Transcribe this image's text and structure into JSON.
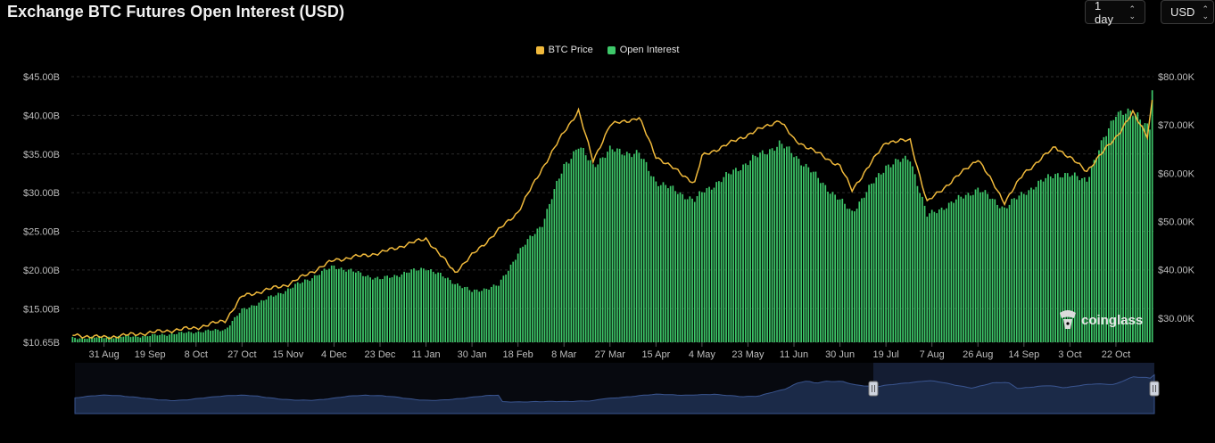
{
  "header": {
    "title": "Exchange BTC Futures Open Interest (USD)",
    "interval_label": "1 day",
    "currency_label": "USD"
  },
  "watermark": {
    "text": "coinglass"
  },
  "colors": {
    "price": "#f0b93b",
    "oi": "#3ec86a",
    "grid": "#2a2a2a",
    "text": "#bdbdbd",
    "navigator": "#1b2a48"
  },
  "chart_data": {
    "type": "bar",
    "series": [
      {
        "name": "BTC Price",
        "type": "line",
        "axis": "right"
      },
      {
        "name": "Open Interest",
        "type": "bar",
        "axis": "left"
      }
    ],
    "x_tick_labels": [
      "31 Aug",
      "19 Sep",
      "8 Oct",
      "27 Oct",
      "15 Nov",
      "4 Dec",
      "23 Dec",
      "11 Jan",
      "30 Jan",
      "18 Feb",
      "8 Mar",
      "27 Mar",
      "15 Apr",
      "4 May",
      "23 May",
      "11 Jun",
      "30 Jun",
      "19 Jul",
      "7 Aug",
      "26 Aug",
      "14 Sep",
      "3 Oct",
      "22 Oct"
    ],
    "y_left_tick_labels": [
      "$45.00B",
      "$40.00B",
      "$35.00B",
      "$30.00B",
      "$25.00B",
      "$20.00B",
      "$15.00B",
      "$10.65B"
    ],
    "y_right_tick_labels": [
      "$80.00K",
      "$70.00K",
      "$60.00K",
      "$50.00K",
      "$40.00K",
      "$30.00K"
    ],
    "y_left_range": [
      10.65,
      45
    ],
    "y_right_range": [
      25,
      80
    ],
    "grid": true,
    "legend_position": "top-center",
    "oi_keypoints_billion_usd": [
      [
        "2023-08-18",
        11.2
      ],
      [
        "2023-08-31",
        11.3
      ],
      [
        "2023-09-19",
        11.5
      ],
      [
        "2023-10-08",
        12.0
      ],
      [
        "2023-10-20",
        12.3
      ],
      [
        "2023-10-27",
        14.8
      ],
      [
        "2023-11-15",
        17.5
      ],
      [
        "2023-12-04",
        20.5
      ],
      [
        "2023-12-23",
        18.8
      ],
      [
        "2024-01-11",
        20.3
      ],
      [
        "2024-01-30",
        17.2
      ],
      [
        "2024-02-10",
        18.0
      ],
      [
        "2024-02-18",
        22.2
      ],
      [
        "2024-02-28",
        26.0
      ],
      [
        "2024-03-08",
        33.5
      ],
      [
        "2024-03-14",
        36.0
      ],
      [
        "2024-03-20",
        33.5
      ],
      [
        "2024-03-27",
        35.5
      ],
      [
        "2024-04-08",
        35.0
      ],
      [
        "2024-04-15",
        31.5
      ],
      [
        "2024-05-01",
        29.0
      ],
      [
        "2024-05-04",
        30.0
      ],
      [
        "2024-05-23",
        34.0
      ],
      [
        "2024-06-05",
        36.3
      ],
      [
        "2024-06-11",
        35.0
      ],
      [
        "2024-06-30",
        29.0
      ],
      [
        "2024-07-05",
        27.5
      ],
      [
        "2024-07-19",
        33.5
      ],
      [
        "2024-07-29",
        34.5
      ],
      [
        "2024-08-05",
        27.0
      ],
      [
        "2024-08-26",
        30.5
      ],
      [
        "2024-09-06",
        28.0
      ],
      [
        "2024-09-14",
        30.0
      ],
      [
        "2024-09-27",
        32.5
      ],
      [
        "2024-10-10",
        31.8
      ],
      [
        "2024-10-22",
        40.5
      ],
      [
        "2024-10-31",
        40.0
      ],
      [
        "2024-11-05",
        38.5
      ],
      [
        "2024-11-06",
        43.5
      ]
    ],
    "btc_price_keypoints_usd": [
      [
        "2023-08-18",
        26500
      ],
      [
        "2023-08-31",
        26000
      ],
      [
        "2023-09-19",
        27000
      ],
      [
        "2023-10-08",
        28000
      ],
      [
        "2023-10-20",
        29500
      ],
      [
        "2023-10-27",
        34500
      ],
      [
        "2023-11-15",
        37000
      ],
      [
        "2023-12-04",
        42000
      ],
      [
        "2023-12-23",
        43500
      ],
      [
        "2024-01-11",
        46500
      ],
      [
        "2024-01-23",
        39500
      ],
      [
        "2024-01-30",
        43000
      ],
      [
        "2024-02-18",
        52000
      ],
      [
        "2024-02-28",
        61000
      ],
      [
        "2024-03-08",
        68500
      ],
      [
        "2024-03-14",
        73000
      ],
      [
        "2024-03-20",
        62500
      ],
      [
        "2024-03-27",
        70000
      ],
      [
        "2024-04-08",
        71500
      ],
      [
        "2024-04-15",
        63500
      ],
      [
        "2024-05-01",
        58000
      ],
      [
        "2024-05-04",
        63500
      ],
      [
        "2024-05-23",
        68000
      ],
      [
        "2024-06-05",
        71000
      ],
      [
        "2024-06-11",
        67000
      ],
      [
        "2024-06-30",
        61500
      ],
      [
        "2024-07-05",
        56500
      ],
      [
        "2024-07-19",
        66500
      ],
      [
        "2024-07-29",
        66800
      ],
      [
        "2024-08-05",
        54000
      ],
      [
        "2024-08-26",
        63000
      ],
      [
        "2024-09-06",
        54000
      ],
      [
        "2024-09-14",
        60000
      ],
      [
        "2024-09-27",
        65500
      ],
      [
        "2024-10-10",
        60500
      ],
      [
        "2024-10-22",
        67500
      ],
      [
        "2024-10-29",
        72500
      ],
      [
        "2024-11-04",
        67800
      ],
      [
        "2024-11-06",
        75000
      ]
    ]
  }
}
